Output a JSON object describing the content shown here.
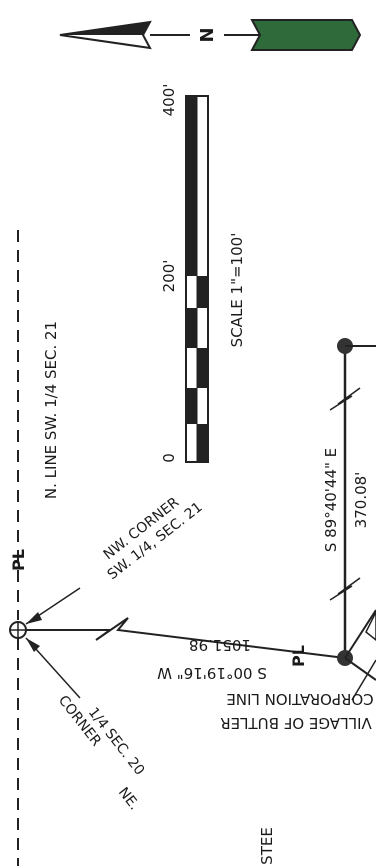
{
  "north_arrow": {
    "letter": "N"
  },
  "scale_bar": {
    "ticks": [
      "0",
      "200'",
      "400'"
    ],
    "caption": "SCALE 1\"=100'"
  },
  "section_line_label": "N. LINE SW. 1/4 SEC. 21",
  "property_line_symbol": "PL",
  "nw_corner_label": [
    "NW. CORNER",
    "SW. 1/4, SEC. 21"
  ],
  "ne_corner_label": [
    "NE.",
    "1/4 SEC. 20",
    "CORNER"
  ],
  "bearing_left": {
    "bearing": "S 00°19'16\" W",
    "distance": "1051.98"
  },
  "bearing_right": {
    "bearing": "S 89°40'44\" E",
    "distance": "370.08'"
  },
  "corporation_label": [
    "VILLAGE OF BUTLER",
    "CORPORATION LINE"
  ],
  "partial_text": "STEE"
}
